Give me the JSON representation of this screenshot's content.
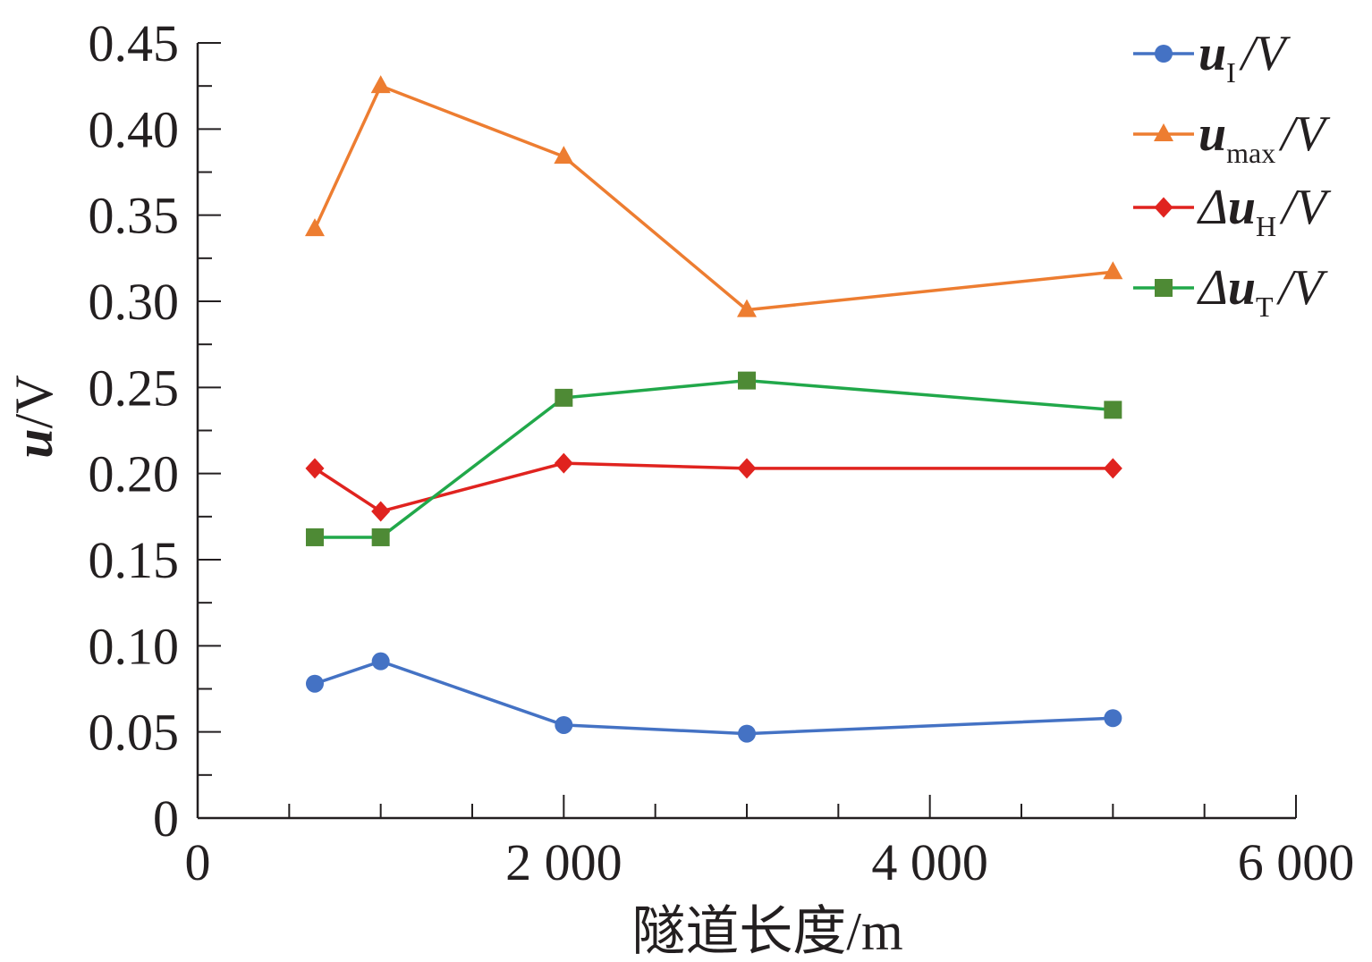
{
  "chart_data": {
    "type": "line",
    "title": "",
    "xlabel": "隧道长度/m",
    "ylabel": {
      "var": "u",
      "unit": "/V"
    },
    "xlim": [
      0,
      6000
    ],
    "ylim": [
      0,
      0.45
    ],
    "x_major_ticks": [
      0,
      2000,
      4000,
      6000
    ],
    "x_tick_labels": [
      "0",
      "2 000",
      "4 000",
      "6 000"
    ],
    "x_minor_step": 500,
    "y_major_ticks": [
      0,
      0.05,
      0.1,
      0.15,
      0.2,
      0.25,
      0.3,
      0.35,
      0.4,
      0.45
    ],
    "y_tick_labels": [
      "0",
      "0.05",
      "0.10",
      "0.15",
      "0.20",
      "0.25",
      "0.30",
      "0.35",
      "0.40",
      "0.45"
    ],
    "y_minor_step": 0.025,
    "grid": false,
    "legend_position": "top-right",
    "x": [
      640,
      1000,
      2000,
      3000,
      5000
    ],
    "series": [
      {
        "name": "u_I/V",
        "label_main": "u",
        "label_sub": "I",
        "label_unit": "/V",
        "prefix": "",
        "color": "#4472c4",
        "marker": "circle",
        "values": [
          0.078,
          0.091,
          0.054,
          0.049,
          0.058
        ]
      },
      {
        "name": "u_max/V",
        "label_main": "u",
        "label_sub": "max",
        "label_unit": "/V",
        "prefix": "",
        "color": "#ed7d31",
        "marker": "triangle",
        "values": [
          0.342,
          0.425,
          0.384,
          0.295,
          0.317
        ]
      },
      {
        "name": "Δu_H/V",
        "label_main": "u",
        "label_sub": "H",
        "label_unit": "/V",
        "prefix": "Δ",
        "color": "#e0231f",
        "marker": "diamond",
        "values": [
          0.203,
          0.178,
          0.206,
          0.203,
          0.203
        ]
      },
      {
        "name": "Δu_T/V",
        "label_main": "u",
        "label_sub": "T",
        "label_unit": "/V",
        "prefix": "Δ",
        "color": "#21a84a",
        "marker": "square",
        "marker_color": "#4e8a35",
        "values": [
          0.163,
          0.163,
          0.244,
          0.254,
          0.237
        ]
      }
    ]
  }
}
